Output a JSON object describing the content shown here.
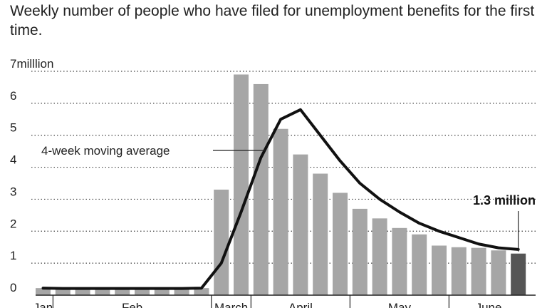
{
  "chart_data": {
    "type": "bar",
    "title": "Weekly number of people who have filed for unemployment benefits for the first time.",
    "xlabel": "",
    "ylabel": "",
    "ylim": [
      0,
      7
    ],
    "y_ticks": [
      {
        "value": 7,
        "label": "7milllion"
      },
      {
        "value": 6,
        "label": "6"
      },
      {
        "value": 5,
        "label": "5"
      },
      {
        "value": 4,
        "label": "4"
      },
      {
        "value": 3,
        "label": "3"
      },
      {
        "value": 2,
        "label": "2"
      },
      {
        "value": 1,
        "label": "1"
      },
      {
        "value": 0,
        "label": "0"
      }
    ],
    "months": [
      {
        "label": "Jan",
        "start": 0,
        "end": 1
      },
      {
        "label": "Feb",
        "start": 1,
        "end": 9
      },
      {
        "label": "March",
        "start": 9,
        "end": 11
      },
      {
        "label": "April",
        "start": 11,
        "end": 16
      },
      {
        "label": "May",
        "start": 16,
        "end": 21
      },
      {
        "label": "June",
        "start": 21,
        "end": 25
      }
    ],
    "series": [
      {
        "kind": "bar",
        "values": [
          0.22,
          0.2,
          0.21,
          0.2,
          0.2,
          0.22,
          0.21,
          0.22,
          0.22,
          3.3,
          6.9,
          6.6,
          5.2,
          4.4,
          3.8,
          3.2,
          2.7,
          2.4,
          2.1,
          1.9,
          1.55,
          1.5,
          1.48,
          1.4,
          1.3
        ]
      },
      {
        "kind": "line",
        "name": "4-week moving average",
        "values": [
          0.22,
          0.21,
          0.21,
          0.21,
          0.21,
          0.21,
          0.21,
          0.21,
          0.22,
          1.0,
          2.6,
          4.3,
          5.5,
          5.8,
          5.0,
          4.2,
          3.5,
          3.0,
          2.6,
          2.25,
          2.0,
          1.8,
          1.6,
          1.48,
          1.43
        ]
      }
    ],
    "colors": {
      "bar": "#a6a6a6",
      "bar_last": "#555555",
      "line": "#111111",
      "grid": "#444444"
    },
    "annotations": {
      "moving_average_label": "4-week moving average",
      "last_value_label": "1.3 million"
    },
    "grid": true
  }
}
